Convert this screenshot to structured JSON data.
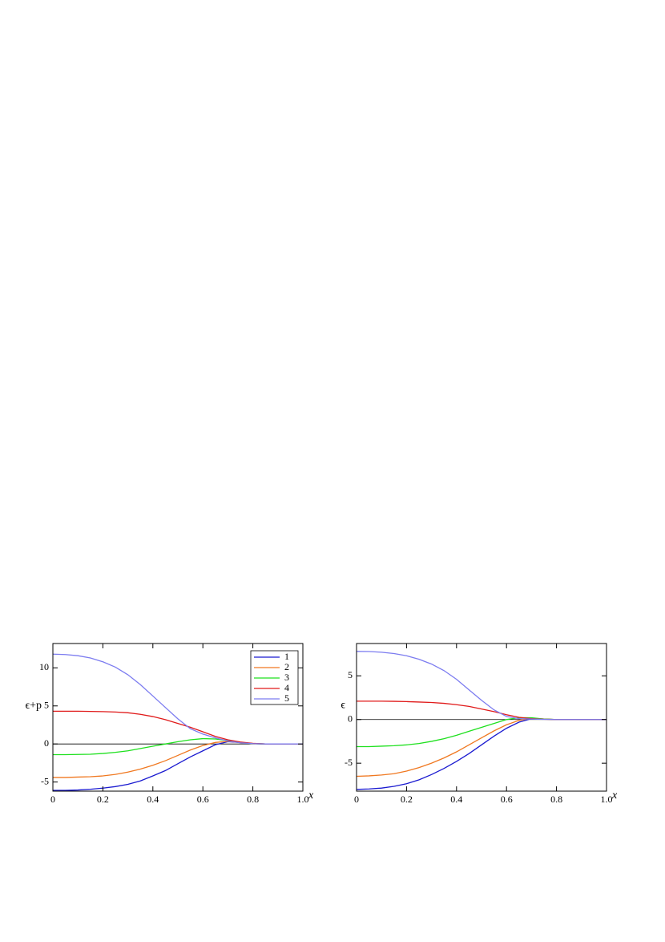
{
  "chart_data": [
    {
      "type": "line",
      "ylabel": "ϵ+p",
      "xlabel": "x",
      "x": [
        0,
        0.05,
        0.1,
        0.15,
        0.2,
        0.25,
        0.3,
        0.35,
        0.4,
        0.45,
        0.5,
        0.55,
        0.6,
        0.65,
        0.7,
        0.75,
        0.8,
        0.85,
        0.9,
        0.95,
        1.0
      ],
      "xlim": [
        0,
        1
      ],
      "xticks": [
        0,
        0.2,
        0.4,
        0.6,
        0.8,
        {
          "value": 1,
          "label": "1.0"
        }
      ],
      "ylim": [
        -6.2,
        13.2
      ],
      "yticks": [
        -5,
        0,
        5,
        10
      ],
      "zero_line": true,
      "legend": "upper right",
      "series": [
        {
          "name": "1",
          "color": "#1a1ad0",
          "values": [
            -6.1,
            -6.1,
            -6.05,
            -5.95,
            -5.8,
            -5.6,
            -5.3,
            -4.85,
            -4.2,
            -3.5,
            -2.6,
            -1.7,
            -0.9,
            -0.1,
            0.3,
            0.2,
            0.05,
            0,
            0,
            0,
            0
          ]
        },
        {
          "name": "2",
          "color": "#f07820",
          "values": [
            -4.4,
            -4.4,
            -4.35,
            -4.3,
            -4.2,
            -4.0,
            -3.7,
            -3.3,
            -2.8,
            -2.2,
            -1.5,
            -0.8,
            -0.2,
            0.2,
            0.35,
            0.2,
            0.05,
            0,
            0,
            0,
            0
          ]
        },
        {
          "name": "3",
          "color": "#1ee01e",
          "values": [
            -1.4,
            -1.4,
            -1.38,
            -1.35,
            -1.25,
            -1.1,
            -0.9,
            -0.6,
            -0.3,
            0,
            0.3,
            0.55,
            0.7,
            0.65,
            0.45,
            0.2,
            0.05,
            0,
            0,
            0,
            0
          ]
        },
        {
          "name": "4",
          "color": "#e01a1a",
          "values": [
            4.3,
            4.3,
            4.3,
            4.28,
            4.25,
            4.2,
            4.1,
            3.9,
            3.6,
            3.2,
            2.7,
            2.2,
            1.6,
            1.0,
            0.55,
            0.25,
            0.08,
            0,
            0,
            0,
            0
          ]
        },
        {
          "name": "5",
          "color": "#7c7cf0",
          "values": [
            11.8,
            11.75,
            11.6,
            11.3,
            10.8,
            10.1,
            9.1,
            7.8,
            6.3,
            4.8,
            3.3,
            2.0,
            1.3,
            0.8,
            0.4,
            0.15,
            0.05,
            0,
            0,
            0,
            0
          ]
        }
      ]
    },
    {
      "type": "line",
      "ylabel": "ϵ",
      "xlabel": "x",
      "x": [
        0,
        0.05,
        0.1,
        0.15,
        0.2,
        0.25,
        0.3,
        0.35,
        0.4,
        0.45,
        0.5,
        0.55,
        0.6,
        0.65,
        0.7,
        0.75,
        0.8,
        0.85,
        0.9,
        0.95,
        1.0
      ],
      "xlim": [
        0,
        1
      ],
      "xticks": [
        0,
        0.2,
        0.4,
        0.6,
        0.8,
        {
          "value": 1,
          "label": "1.0"
        }
      ],
      "ylim": [
        -8.2,
        8.7
      ],
      "yticks": [
        -5,
        0,
        5
      ],
      "zero_line": true,
      "series": [
        {
          "color": "#1a1ad0",
          "values": [
            -8.0,
            -7.95,
            -7.85,
            -7.65,
            -7.35,
            -6.9,
            -6.3,
            -5.6,
            -4.8,
            -3.9,
            -2.9,
            -1.9,
            -1.0,
            -0.3,
            0.1,
            0.05,
            0,
            0,
            0,
            0,
            0
          ]
        },
        {
          "color": "#f07820",
          "values": [
            -6.5,
            -6.45,
            -6.35,
            -6.2,
            -5.9,
            -5.5,
            -5.0,
            -4.4,
            -3.7,
            -2.9,
            -2.1,
            -1.3,
            -0.6,
            -0.1,
            0.15,
            0.05,
            0,
            0,
            0,
            0,
            0
          ]
        },
        {
          "color": "#1ee01e",
          "values": [
            -3.1,
            -3.1,
            -3.05,
            -3.0,
            -2.9,
            -2.75,
            -2.5,
            -2.2,
            -1.8,
            -1.35,
            -0.9,
            -0.45,
            0,
            0.2,
            0.2,
            0.05,
            0,
            0,
            0,
            0,
            0
          ]
        },
        {
          "color": "#e01a1a",
          "values": [
            2.1,
            2.1,
            2.1,
            2.08,
            2.05,
            2.0,
            1.95,
            1.85,
            1.7,
            1.5,
            1.2,
            0.9,
            0.55,
            0.25,
            0.1,
            0.03,
            0,
            0,
            0,
            0,
            0
          ]
        },
        {
          "color": "#7c7cf0",
          "values": [
            7.8,
            7.78,
            7.7,
            7.55,
            7.3,
            6.9,
            6.35,
            5.6,
            4.6,
            3.4,
            2.2,
            1.1,
            0.35,
            0.1,
            0.05,
            0.02,
            0,
            0,
            0,
            0,
            0
          ]
        }
      ]
    }
  ]
}
